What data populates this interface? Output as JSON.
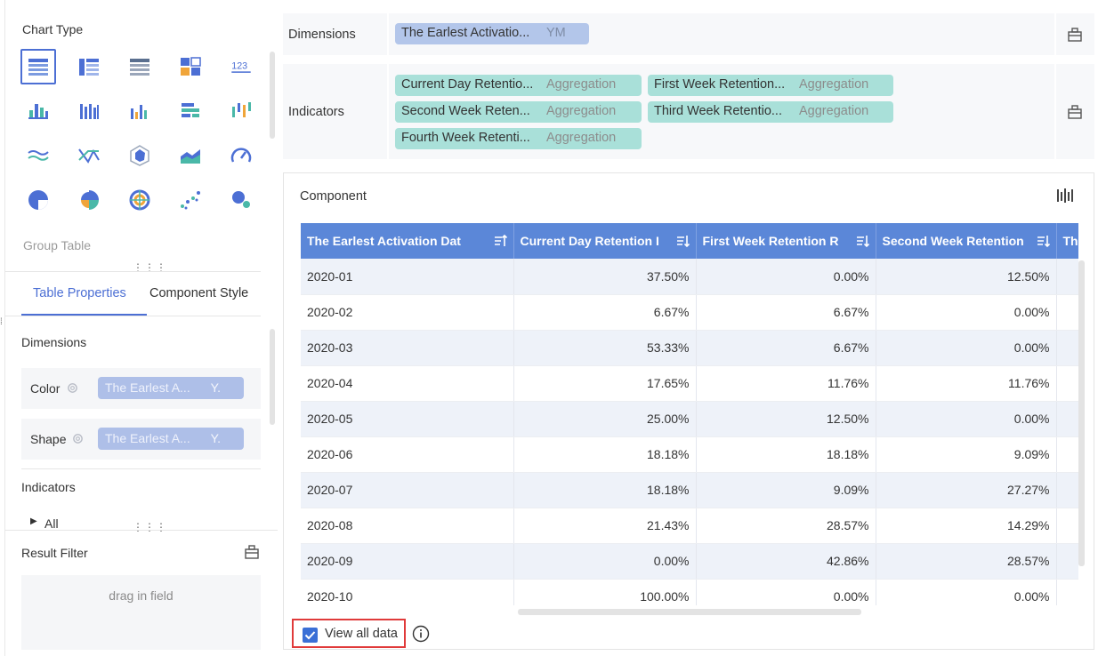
{
  "left_panel": {
    "chart_type_title": "Chart Type",
    "chart_type_icons": [
      "group-table-icon",
      "cross-table-icon",
      "detail-table-icon",
      "kpi-card-icon",
      "number-123-icon",
      "stacked-column-icon",
      "grouped-column-icon",
      "column-chart-icon",
      "bar-chart-icon",
      "range-column-icon",
      "line-chart-icon",
      "scatter-line-icon",
      "radar-chart-icon",
      "area-chart-icon",
      "gauge-icon",
      "pie-chart-icon",
      "rose-pie-icon",
      "radial-chart-icon",
      "scatter-plot-icon",
      "bubble-chart-icon"
    ],
    "number_icon_text": "123",
    "selected_chart": "Group Table",
    "tabs": [
      "Table Properties",
      "Component Style"
    ],
    "dimensions_title": "Dimensions",
    "color_label": "Color",
    "color_field": "The Earlest A...",
    "color_suffix": "Y.",
    "shape_label": "Shape",
    "shape_field": "The Earlest A...",
    "shape_suffix": "Y.",
    "indicators_title": "Indicators",
    "all_label": "All",
    "result_filter_title": "Result Filter",
    "drag_placeholder": "drag in field"
  },
  "config": {
    "dimensions_label": "Dimensions",
    "dimension_pill": {
      "name": "The Earlest Activatio...",
      "suffix": "YM"
    },
    "indicators_label": "Indicators",
    "indicator_pills": [
      {
        "name": "Current Day Retentio...",
        "suffix": "Aggregation"
      },
      {
        "name": "First Week Retention...",
        "suffix": "Aggregation"
      },
      {
        "name": "Second Week Reten...",
        "suffix": "Aggregation"
      },
      {
        "name": "Third Week Retentio...",
        "suffix": "Aggregation"
      },
      {
        "name": "Fourth Week Retenti...",
        "suffix": "Aggregation"
      }
    ]
  },
  "component": {
    "title": "Component",
    "columns": [
      "The Earlest Activation Dat",
      "Current Day Retention I",
      "First Week Retention R",
      "Second Week Retention",
      "Th"
    ],
    "rows": [
      [
        "2020-01",
        "37.50%",
        "0.00%",
        "12.50%"
      ],
      [
        "2020-02",
        "6.67%",
        "6.67%",
        "0.00%"
      ],
      [
        "2020-03",
        "53.33%",
        "6.67%",
        "0.00%"
      ],
      [
        "2020-04",
        "17.65%",
        "11.76%",
        "11.76%"
      ],
      [
        "2020-05",
        "25.00%",
        "12.50%",
        "0.00%"
      ],
      [
        "2020-06",
        "18.18%",
        "18.18%",
        "9.09%"
      ],
      [
        "2020-07",
        "18.18%",
        "9.09%",
        "27.27%"
      ],
      [
        "2020-08",
        "21.43%",
        "28.57%",
        "14.29%"
      ],
      [
        "2020-09",
        "0.00%",
        "42.86%",
        "28.57%"
      ],
      [
        "2020-10",
        "100.00%",
        "0.00%",
        "0.00%"
      ]
    ],
    "view_all_label": "View all data",
    "view_all_checked": true
  },
  "colors": {
    "accent": "#4c6fd4",
    "header": "#5b87d8",
    "dimension_pill": "#b3c6ea",
    "indicator_pill": "#a9e0d9",
    "highlight": "#e03a3a"
  }
}
